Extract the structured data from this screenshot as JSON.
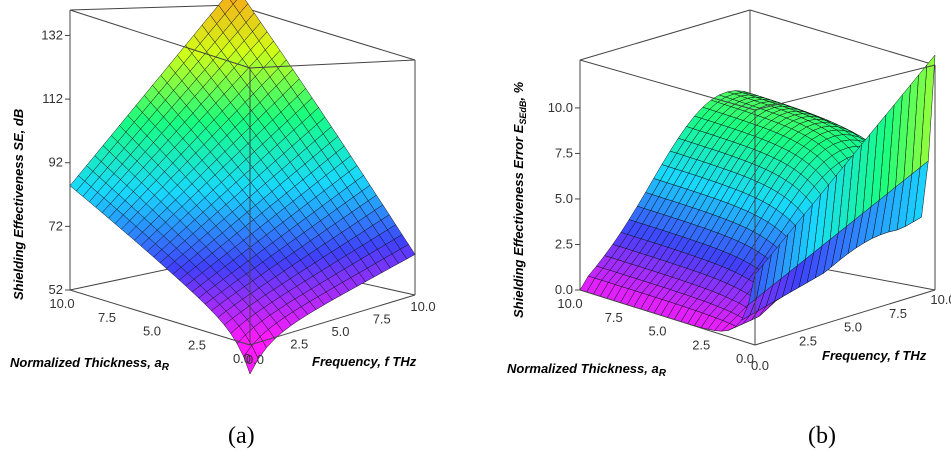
{
  "chart_data": [
    {
      "type": "surface",
      "panel_label": "(a)",
      "zlabel": "Shielding Effectiveness SE, dB",
      "xlabel": "Normalized Thickness, a",
      "xlabel_sub": "R",
      "ylabel": "Frequency, f THz",
      "z_ticks": [
        "52",
        "72",
        "92",
        "112",
        "132"
      ],
      "x_ticks": [
        "10.0",
        "7.5",
        "5.0",
        "2.5",
        "0.0"
      ],
      "y_ticks": [
        "2.5",
        "5.0",
        "7.5",
        "10.0"
      ],
      "x_range": [
        0,
        10
      ],
      "y_range": [
        0,
        10
      ],
      "zlim": [
        52,
        140
      ],
      "corners": {
        "a0_f0": 52,
        "a0_f10": 66,
        "a10_f0": 88,
        "a10_f10": 140
      }
    },
    {
      "type": "surface",
      "panel_label": "(b)",
      "zlabel": "Shielding Effectiveness Error E",
      "zlabel_sub": "SEdB",
      "zlabel_suffix": ", %",
      "xlabel": "Normalized Thickness, a",
      "xlabel_sub": "R",
      "ylabel": "Frequency, f THz",
      "z_ticks": [
        "0.0",
        "2.5",
        "5.0",
        "7.5",
        "10.0"
      ],
      "x_ticks": [
        "10.0",
        "7.5",
        "5.0",
        "2.5",
        "0.0"
      ],
      "y_ticks": [
        "2.5",
        "5.0",
        "7.5",
        "10.0"
      ],
      "x_range": [
        0,
        10
      ],
      "y_range": [
        0,
        10
      ],
      "zlim": [
        0,
        12
      ],
      "ridge_peak": 9.0,
      "wall_max": 12.0
    }
  ],
  "colors": {
    "colormap": [
      "#ff1aff",
      "#4040ff",
      "#18d8ff",
      "#18ff80",
      "#d0ff18",
      "#ff9a18"
    ],
    "mesh": "#111111",
    "box": "#444444"
  }
}
